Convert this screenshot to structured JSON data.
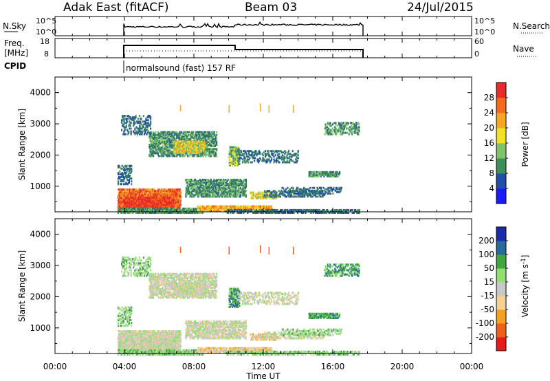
{
  "header": {
    "site": "Adak East (fitACF)",
    "beam": "Beam 03",
    "date": "24/Jul/2015"
  },
  "colors": {
    "frame": "#000000",
    "power_scale": [
      "#1a1aff",
      "#1f4fa8",
      "#2f6a7a",
      "#3f8f5a",
      "#7fc36a",
      "#f0e02a",
      "#f5a623",
      "#f56a1a",
      "#e82a2a"
    ],
    "velocity_scale": [
      "#e8191a",
      "#f0601a",
      "#f5a020",
      "#f5d090",
      "#c8c8c8",
      "#90e070",
      "#3fa640",
      "#2a6a9a",
      "#1a2aa8"
    ]
  },
  "panels": {
    "nsky": {
      "label": "N.Sky",
      "left_ticks": [
        "10^5",
        "10^0"
      ],
      "right_ticks": [
        "10^5",
        "10^0"
      ],
      "right_label": "N.Search"
    },
    "freq": {
      "label_line1": "Freq.",
      "label_line2": "[MHz]",
      "left_ticks": [
        "18",
        "8"
      ],
      "right_ticks": [
        "60",
        "0"
      ],
      "right_label": "Nave"
    },
    "cpid": {
      "label": "CPID",
      "program": "normalsound (fast) 157 RF"
    }
  },
  "chart_data": [
    {
      "type": "heatmap",
      "name": "Power",
      "xlabel": "",
      "ylabel": "Slant Range [km]",
      "x_ticks": [
        "00:00",
        "04:00",
        "08:00",
        "12:00",
        "16:00",
        "20:00",
        "00:00"
      ],
      "xlim_hours": [
        0,
        24
      ],
      "ylim_km": [
        180,
        4500
      ],
      "y_ticks": [
        "1000",
        "2000",
        "3000",
        "4000"
      ],
      "y_tick_values": [
        1000,
        2000,
        3000,
        4000
      ],
      "colorbar_label": "Power [dB]",
      "colorbar_ticks": [
        "4",
        "8",
        "12",
        "16",
        "20",
        "24",
        "28"
      ],
      "colorbar_range": [
        0,
        32
      ]
    },
    {
      "type": "heatmap",
      "name": "Velocity",
      "xlabel": "Time UT",
      "ylabel": "Slant Range [km]",
      "x_ticks": [
        "00:00",
        "04:00",
        "08:00",
        "12:00",
        "16:00",
        "20:00",
        "00:00"
      ],
      "xlim_hours": [
        0,
        24
      ],
      "ylim_km": [
        180,
        4500
      ],
      "y_ticks": [
        "1000",
        "2000",
        "3000",
        "4000"
      ],
      "y_tick_values": [
        1000,
        2000,
        3000,
        4000
      ],
      "colorbar_label": "Velocity [m s^-1]",
      "colorbar_ticks": [
        "200",
        "100",
        "50",
        "15",
        "-15",
        "-50",
        "-100",
        "-200"
      ]
    }
  ]
}
